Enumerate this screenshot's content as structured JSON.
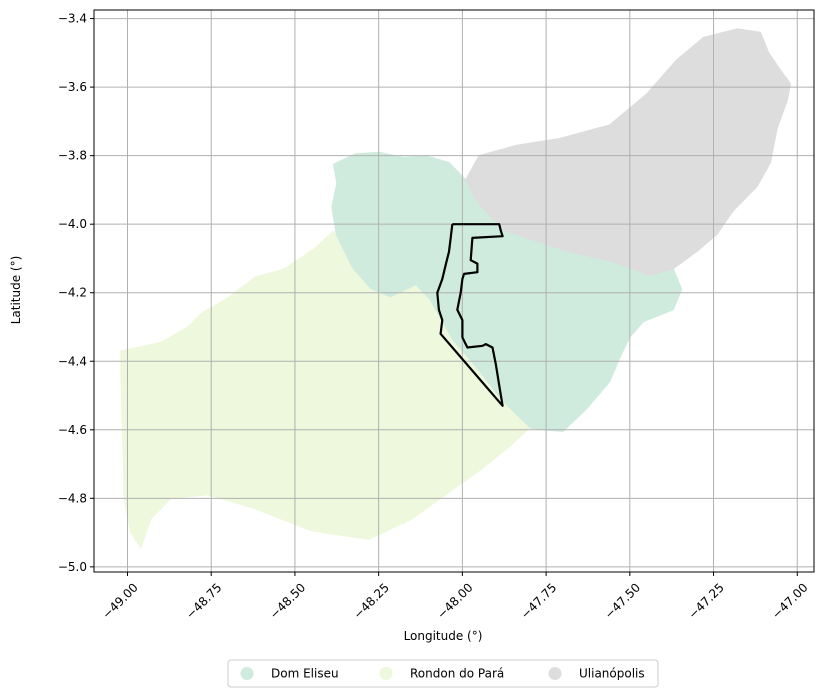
{
  "chart_data": {
    "type": "map",
    "xlabel": "Longitude (°)",
    "ylabel": "Latitude (°)",
    "xlim": [
      -49.1,
      -46.95
    ],
    "ylim": [
      -5.015,
      -3.375
    ],
    "xticks": [
      {
        "value": -49.0,
        "label": "−49.00"
      },
      {
        "value": -48.75,
        "label": "−48.75"
      },
      {
        "value": -48.5,
        "label": "−48.50"
      },
      {
        "value": -48.25,
        "label": "−48.25"
      },
      {
        "value": -48.0,
        "label": "−48.00"
      },
      {
        "value": -47.75,
        "label": "−47.75"
      },
      {
        "value": -47.5,
        "label": "−47.50"
      },
      {
        "value": -47.25,
        "label": "−47.25"
      },
      {
        "value": -47.0,
        "label": "−47.00"
      }
    ],
    "yticks": [
      {
        "value": -3.4,
        "label": "−3.4"
      },
      {
        "value": -3.6,
        "label": "−3.6"
      },
      {
        "value": -3.8,
        "label": "−3.8"
      },
      {
        "value": -4.0,
        "label": "−4.0"
      },
      {
        "value": -4.2,
        "label": "−4.2"
      },
      {
        "value": -4.4,
        "label": "−4.4"
      },
      {
        "value": -4.6,
        "label": "−4.6"
      },
      {
        "value": -4.8,
        "label": "−4.8"
      },
      {
        "value": -5.0,
        "label": "−5.0"
      }
    ],
    "grid": true,
    "legend_position": "bottom-center",
    "regions": [
      {
        "name": "Dom Eliseu",
        "color": "#cfebde",
        "boundary": [
          [
            -48.385,
            -3.825
          ],
          [
            -48.32,
            -3.795
          ],
          [
            -48.25,
            -3.79
          ],
          [
            -48.175,
            -3.805
          ],
          [
            -48.11,
            -3.8
          ],
          [
            -48.04,
            -3.82
          ],
          [
            -47.99,
            -3.87
          ],
          [
            -47.96,
            -3.93
          ],
          [
            -47.905,
            -3.99
          ],
          [
            -47.87,
            -4.02
          ],
          [
            -47.78,
            -4.05
          ],
          [
            -47.68,
            -4.08
          ],
          [
            -47.55,
            -4.11
          ],
          [
            -47.44,
            -4.15
          ],
          [
            -47.37,
            -4.13
          ],
          [
            -47.345,
            -4.19
          ],
          [
            -47.37,
            -4.25
          ],
          [
            -47.46,
            -4.285
          ],
          [
            -47.5,
            -4.33
          ],
          [
            -47.53,
            -4.39
          ],
          [
            -47.56,
            -4.46
          ],
          [
            -47.63,
            -4.54
          ],
          [
            -47.7,
            -4.605
          ],
          [
            -47.76,
            -4.6
          ],
          [
            -47.8,
            -4.595
          ],
          [
            -47.88,
            -4.52
          ],
          [
            -47.96,
            -4.42
          ],
          [
            -48.03,
            -4.34
          ],
          [
            -48.1,
            -4.22
          ],
          [
            -48.14,
            -4.18
          ],
          [
            -48.215,
            -4.215
          ],
          [
            -48.275,
            -4.19
          ],
          [
            -48.33,
            -4.13
          ],
          [
            -48.375,
            -4.04
          ],
          [
            -48.39,
            -3.95
          ],
          [
            -48.375,
            -3.88
          ]
        ]
      },
      {
        "name": "Rondon do Pará",
        "color": "#edf8dc",
        "boundary": [
          [
            -49.02,
            -4.37
          ],
          [
            -48.9,
            -4.345
          ],
          [
            -48.82,
            -4.3
          ],
          [
            -48.78,
            -4.26
          ],
          [
            -48.7,
            -4.215
          ],
          [
            -48.62,
            -4.155
          ],
          [
            -48.53,
            -4.13
          ],
          [
            -48.44,
            -4.07
          ],
          [
            -48.385,
            -4.02
          ],
          [
            -48.375,
            -4.04
          ],
          [
            -48.33,
            -4.13
          ],
          [
            -48.275,
            -4.19
          ],
          [
            -48.215,
            -4.215
          ],
          [
            -48.14,
            -4.18
          ],
          [
            -48.1,
            -4.22
          ],
          [
            -48.03,
            -4.34
          ],
          [
            -47.96,
            -4.42
          ],
          [
            -47.88,
            -4.52
          ],
          [
            -47.8,
            -4.595
          ],
          [
            -47.86,
            -4.65
          ],
          [
            -47.95,
            -4.72
          ],
          [
            -48.05,
            -4.79
          ],
          [
            -48.15,
            -4.86
          ],
          [
            -48.28,
            -4.92
          ],
          [
            -48.45,
            -4.895
          ],
          [
            -48.62,
            -4.83
          ],
          [
            -48.76,
            -4.79
          ],
          [
            -48.87,
            -4.8
          ],
          [
            -48.93,
            -4.86
          ],
          [
            -48.96,
            -4.945
          ],
          [
            -48.99,
            -4.9
          ],
          [
            -49.01,
            -4.8
          ],
          [
            -49.015,
            -4.6
          ],
          [
            -49.02,
            -4.45
          ]
        ]
      },
      {
        "name": "Ulianópolis",
        "color": "#dddddd",
        "boundary": [
          [
            -47.99,
            -3.87
          ],
          [
            -47.95,
            -3.8
          ],
          [
            -47.84,
            -3.77
          ],
          [
            -47.71,
            -3.75
          ],
          [
            -47.56,
            -3.71
          ],
          [
            -47.45,
            -3.62
          ],
          [
            -47.36,
            -3.52
          ],
          [
            -47.28,
            -3.455
          ],
          [
            -47.18,
            -3.43
          ],
          [
            -47.11,
            -3.44
          ],
          [
            -47.085,
            -3.5
          ],
          [
            -47.05,
            -3.55
          ],
          [
            -47.02,
            -3.59
          ],
          [
            -47.03,
            -3.64
          ],
          [
            -47.06,
            -3.72
          ],
          [
            -47.08,
            -3.82
          ],
          [
            -47.12,
            -3.89
          ],
          [
            -47.19,
            -3.96
          ],
          [
            -47.24,
            -4.03
          ],
          [
            -47.3,
            -4.08
          ],
          [
            -47.37,
            -4.13
          ],
          [
            -47.44,
            -4.15
          ],
          [
            -47.55,
            -4.11
          ],
          [
            -47.68,
            -4.08
          ],
          [
            -47.78,
            -4.05
          ],
          [
            -47.87,
            -4.02
          ],
          [
            -47.905,
            -3.99
          ],
          [
            -47.96,
            -3.93
          ]
        ]
      }
    ],
    "outline": {
      "color": "#000000",
      "points": [
        [
          -48.03,
          -4.0
        ],
        [
          -47.89,
          -4.0
        ],
        [
          -47.885,
          -4.02
        ],
        [
          -47.88,
          -4.035
        ],
        [
          -47.97,
          -4.04
        ],
        [
          -47.975,
          -4.105
        ],
        [
          -47.955,
          -4.115
        ],
        [
          -47.955,
          -4.14
        ],
        [
          -47.995,
          -4.145
        ],
        [
          -48.0,
          -4.16
        ],
        [
          -48.005,
          -4.2
        ],
        [
          -48.015,
          -4.25
        ],
        [
          -48.0,
          -4.28
        ],
        [
          -48.0,
          -4.33
        ],
        [
          -47.99,
          -4.35
        ],
        [
          -47.985,
          -4.36
        ],
        [
          -47.94,
          -4.355
        ],
        [
          -47.93,
          -4.35
        ],
        [
          -47.91,
          -4.36
        ],
        [
          -47.9,
          -4.41
        ],
        [
          -47.89,
          -4.47
        ],
        [
          -47.88,
          -4.53
        ],
        [
          -48.065,
          -4.32
        ],
        [
          -48.06,
          -4.28
        ],
        [
          -48.07,
          -4.25
        ],
        [
          -48.075,
          -4.2
        ],
        [
          -48.06,
          -4.16
        ],
        [
          -48.05,
          -4.12
        ],
        [
          -48.04,
          -4.08
        ],
        [
          -48.035,
          -4.04
        ],
        [
          -48.03,
          -4.0
        ]
      ]
    }
  }
}
